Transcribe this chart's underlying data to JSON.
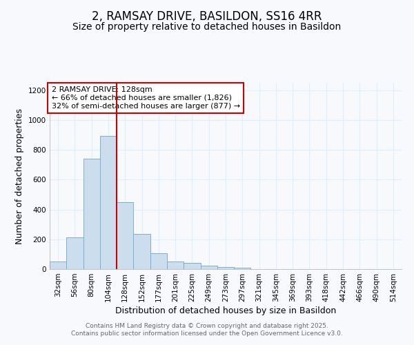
{
  "title": "2, RAMSAY DRIVE, BASILDON, SS16 4RR",
  "subtitle": "Size of property relative to detached houses in Basildon",
  "xlabel": "Distribution of detached houses by size in Basildon",
  "ylabel": "Number of detached properties",
  "categories": [
    "32sqm",
    "56sqm",
    "80sqm",
    "104sqm",
    "128sqm",
    "152sqm",
    "177sqm",
    "201sqm",
    "225sqm",
    "249sqm",
    "273sqm",
    "297sqm",
    "321sqm",
    "345sqm",
    "369sqm",
    "393sqm",
    "418sqm",
    "442sqm",
    "466sqm",
    "490sqm",
    "514sqm"
  ],
  "values": [
    50,
    215,
    740,
    895,
    450,
    235,
    105,
    50,
    40,
    25,
    15,
    8,
    2,
    0,
    0,
    0,
    0,
    0,
    0,
    0,
    0
  ],
  "bar_color": "#ccdded",
  "bar_edge_color": "#7aafd4",
  "red_line_x": 3.5,
  "ylim": [
    0,
    1250
  ],
  "yticks": [
    0,
    200,
    400,
    600,
    800,
    1000,
    1200
  ],
  "annotation_text": "2 RAMSAY DRIVE: 128sqm\n← 66% of detached houses are smaller (1,826)\n32% of semi-detached houses are larger (877) →",
  "annotation_box_facecolor": "#ffffff",
  "annotation_box_edgecolor": "#cc0000",
  "footer_line1": "Contains HM Land Registry data © Crown copyright and database right 2025.",
  "footer_line2": "Contains public sector information licensed under the Open Government Licence v3.0.",
  "background_color": "#f7f9fc",
  "grid_color": "#ddeeff",
  "title_fontsize": 12,
  "subtitle_fontsize": 10,
  "axis_label_fontsize": 9,
  "tick_fontsize": 7.5,
  "annotation_fontsize": 8,
  "footer_fontsize": 6.5,
  "red_line_color": "#cc0000"
}
